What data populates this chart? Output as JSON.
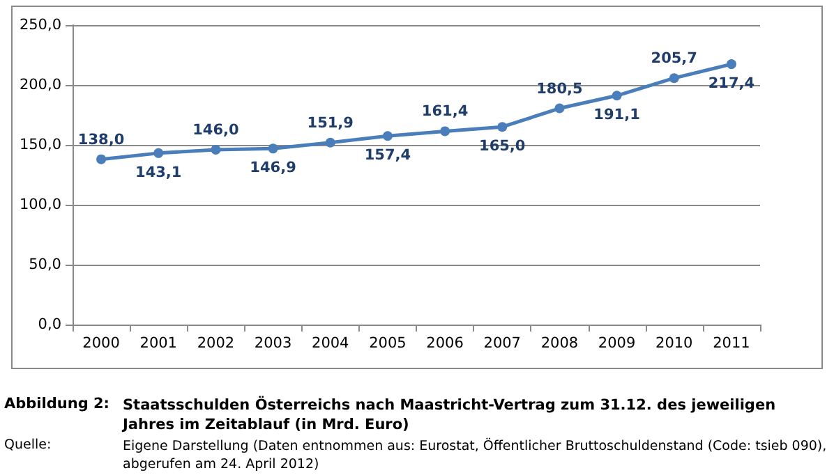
{
  "chart_data": {
    "type": "line",
    "title": "Staatsschulden Österreichs nach Maastricht-Vertrag zum 31.12. des jeweiligen Jahres im Zeitablauf (in Mrd. Euro)",
    "annotations": [
      "Abbildung 2:",
      "Quelle:",
      "Eigene Darstellung (Daten entnommen aus: Eurostat, Öffentlicher Bruttoschuldenstand (Code: tsieb 090), abgerufen am 24. April 2012)"
    ],
    "categories": [
      "2000",
      "2001",
      "2002",
      "2003",
      "2004",
      "2005",
      "2006",
      "2007",
      "2008",
      "2009",
      "2010",
      "2011"
    ],
    "series": [
      {
        "color": "#4a7ebb",
        "values": [
          138.0,
          143.1,
          146.0,
          146.9,
          151.9,
          157.4,
          161.4,
          165.0,
          180.5,
          191.1,
          205.7,
          217.4
        ],
        "value_labels": [
          "138,0",
          "143,1",
          "146,0",
          "146,9",
          "151,9",
          "157,4",
          "161,4",
          "165,0",
          "180,5",
          "191,1",
          "205,7",
          "217,4"
        ]
      }
    ],
    "ylim": [
      0,
      250
    ],
    "yticks": [
      {
        "value": 0,
        "label": "0,0"
      },
      {
        "value": 50,
        "label": "50,0"
      },
      {
        "value": 100,
        "label": "100,0"
      },
      {
        "value": 150,
        "label": "150,0"
      },
      {
        "value": 200,
        "label": "200,0"
      },
      {
        "value": 250,
        "label": "250,0"
      }
    ],
    "grid": "y",
    "marker": "circle",
    "line_style": "solid"
  }
}
